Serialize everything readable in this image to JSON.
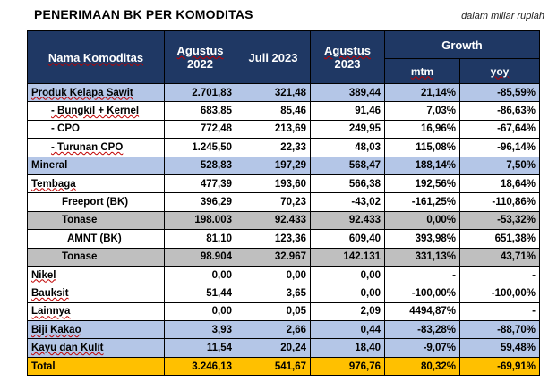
{
  "title": "PENERIMAAN BK PER KOMODITAS",
  "subtitle": "dalam miliar rupiah",
  "headers": {
    "name": "Nama Komoditas",
    "col1_line1": "Agustus",
    "col1_line2": "2022",
    "col2": "Juli 2023",
    "col3_line1": "Agustus",
    "col3_line2": "2023",
    "growth": "Growth",
    "mtm": "mtm",
    "yoy": "yoy"
  },
  "rows": [
    {
      "name": "Produk Kelapa Sawit",
      "aug22": "2.701,83",
      "jul23": "321,48",
      "aug23": "389,44",
      "mtm": "21,14%",
      "yoy": "-85,59%"
    },
    {
      "name": "- Bungkil + Kernel",
      "aug22": "683,85",
      "jul23": "85,46",
      "aug23": "91,46",
      "mtm": "7,03%",
      "yoy": "-86,63%"
    },
    {
      "name": "- CPO",
      "aug22": "772,48",
      "jul23": "213,69",
      "aug23": "249,95",
      "mtm": "16,96%",
      "yoy": "-67,64%"
    },
    {
      "name": "- Turunan CPO",
      "aug22": "1.245,50",
      "jul23": "22,33",
      "aug23": "48,03",
      "mtm": "115,08%",
      "yoy": "-96,14%"
    },
    {
      "name": "Mineral",
      "aug22": "528,83",
      "jul23": "197,29",
      "aug23": "568,47",
      "mtm": "188,14%",
      "yoy": "7,50%"
    },
    {
      "name": "Tembaga",
      "aug22": "477,39",
      "jul23": "193,60",
      "aug23": "566,38",
      "mtm": "192,56%",
      "yoy": "18,64%"
    },
    {
      "name": "Freeport (BK)",
      "aug22": "396,29",
      "jul23": "70,23",
      "aug23": "-43,02",
      "mtm": "-161,25%",
      "yoy": "-110,86%"
    },
    {
      "name": "Tonase",
      "aug22": "198.003",
      "jul23": "92.433",
      "aug23": "92.433",
      "mtm": "0,00%",
      "yoy": "-53,32%"
    },
    {
      "name": "AMNT (BK)",
      "aug22": "81,10",
      "jul23": "123,36",
      "aug23": "609,40",
      "mtm": "393,98%",
      "yoy": "651,38%"
    },
    {
      "name": "Tonase",
      "aug22": "98.904",
      "jul23": "32.967",
      "aug23": "142.131",
      "mtm": "331,13%",
      "yoy": "43,71%"
    },
    {
      "name": "Nikel",
      "aug22": "0,00",
      "jul23": "0,00",
      "aug23": "0,00",
      "mtm": "-",
      "yoy": "-"
    },
    {
      "name": "Bauksit",
      "aug22": "51,44",
      "jul23": "3,65",
      "aug23": "0,00",
      "mtm": "-100,00%",
      "yoy": "-100,00%"
    },
    {
      "name": "Lainnya",
      "aug22": "0,00",
      "jul23": "0,05",
      "aug23": "2,09",
      "mtm": "4494,87%",
      "yoy": "-"
    },
    {
      "name": "Biji Kakao",
      "aug22": "3,93",
      "jul23": "2,66",
      "aug23": "0,44",
      "mtm": "-83,28%",
      "yoy": "-88,70%"
    },
    {
      "name": "Kayu dan Kulit",
      "aug22": "11,54",
      "jul23": "20,24",
      "aug23": "18,40",
      "mtm": "-9,07%",
      "yoy": "59,48%"
    },
    {
      "name": "Total",
      "aug22": "3.246,13",
      "jul23": "541,67",
      "aug23": "976,76",
      "mtm": "80,32%",
      "yoy": "-69,91%"
    }
  ],
  "colors": {
    "header": "#1f3864",
    "highlight_blue": "#b4c6e7",
    "highlight_grey": "#bfbfbf",
    "total": "#ffc000"
  }
}
